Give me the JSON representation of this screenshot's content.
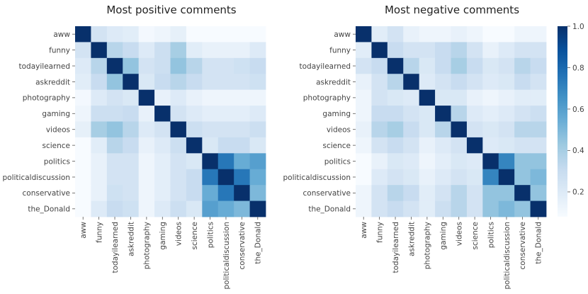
{
  "chart_data": [
    {
      "type": "heatmap",
      "title": "Most positive comments",
      "categories": [
        "aww",
        "funny",
        "todayilearned",
        "askreddit",
        "photography",
        "gaming",
        "videos",
        "science",
        "politics",
        "politicaldiscussion",
        "conservative",
        "the_Donald"
      ],
      "values": [
        [
          1.0,
          0.25,
          0.2,
          0.18,
          0.1,
          0.12,
          0.16,
          0.08,
          0.06,
          0.07,
          0.06,
          0.08
        ],
        [
          0.25,
          1.0,
          0.35,
          0.3,
          0.2,
          0.28,
          0.4,
          0.18,
          0.15,
          0.15,
          0.15,
          0.2
        ],
        [
          0.2,
          0.35,
          1.0,
          0.45,
          0.25,
          0.28,
          0.45,
          0.35,
          0.25,
          0.25,
          0.27,
          0.3
        ],
        [
          0.18,
          0.3,
          0.45,
          1.0,
          0.22,
          0.3,
          0.35,
          0.3,
          0.25,
          0.25,
          0.25,
          0.27
        ],
        [
          0.1,
          0.2,
          0.25,
          0.22,
          1.0,
          0.15,
          0.2,
          0.15,
          0.12,
          0.12,
          0.12,
          0.12
        ],
        [
          0.12,
          0.28,
          0.28,
          0.3,
          0.15,
          1.0,
          0.25,
          0.2,
          0.17,
          0.17,
          0.17,
          0.2
        ],
        [
          0.16,
          0.4,
          0.45,
          0.35,
          0.2,
          0.25,
          1.0,
          0.28,
          0.25,
          0.25,
          0.25,
          0.28
        ],
        [
          0.08,
          0.18,
          0.35,
          0.3,
          0.15,
          0.2,
          0.28,
          1.0,
          0.22,
          0.3,
          0.3,
          0.22
        ],
        [
          0.06,
          0.15,
          0.25,
          0.25,
          0.12,
          0.17,
          0.25,
          0.22,
          1.0,
          0.75,
          0.55,
          0.6
        ],
        [
          0.07,
          0.15,
          0.25,
          0.25,
          0.12,
          0.17,
          0.25,
          0.3,
          0.75,
          1.0,
          0.75,
          0.55
        ],
        [
          0.06,
          0.15,
          0.27,
          0.25,
          0.12,
          0.17,
          0.25,
          0.3,
          0.55,
          0.75,
          1.0,
          0.5
        ],
        [
          0.08,
          0.2,
          0.3,
          0.27,
          0.12,
          0.2,
          0.28,
          0.22,
          0.6,
          0.55,
          0.5,
          1.0
        ]
      ]
    },
    {
      "type": "heatmap",
      "title": "Most negative comments",
      "categories": [
        "aww",
        "funny",
        "todayilearned",
        "askreddit",
        "photography",
        "gaming",
        "videos",
        "science",
        "politics",
        "politicaldiscussion",
        "conservative",
        "the_Donald"
      ],
      "values": [
        [
          1.0,
          0.18,
          0.25,
          0.15,
          0.12,
          0.12,
          0.15,
          0.12,
          0.07,
          0.07,
          0.12,
          0.12
        ],
        [
          0.18,
          1.0,
          0.3,
          0.25,
          0.25,
          0.3,
          0.35,
          0.25,
          0.15,
          0.2,
          0.25,
          0.25
        ],
        [
          0.25,
          0.3,
          1.0,
          0.35,
          0.22,
          0.3,
          0.4,
          0.3,
          0.22,
          0.25,
          0.35,
          0.3
        ],
        [
          0.15,
          0.25,
          0.35,
          1.0,
          0.2,
          0.25,
          0.3,
          0.25,
          0.2,
          0.22,
          0.3,
          0.25
        ],
        [
          0.12,
          0.25,
          0.22,
          0.2,
          1.0,
          0.22,
          0.22,
          0.15,
          0.12,
          0.15,
          0.18,
          0.18
        ],
        [
          0.12,
          0.3,
          0.3,
          0.25,
          0.22,
          1.0,
          0.35,
          0.2,
          0.17,
          0.2,
          0.25,
          0.28
        ],
        [
          0.15,
          0.35,
          0.4,
          0.3,
          0.22,
          0.35,
          1.0,
          0.25,
          0.22,
          0.25,
          0.35,
          0.35
        ],
        [
          0.12,
          0.25,
          0.3,
          0.25,
          0.15,
          0.2,
          0.25,
          1.0,
          0.2,
          0.22,
          0.25,
          0.25
        ],
        [
          0.07,
          0.15,
          0.22,
          0.2,
          0.12,
          0.17,
          0.22,
          0.2,
          1.0,
          0.7,
          0.45,
          0.45
        ],
        [
          0.07,
          0.2,
          0.25,
          0.22,
          0.15,
          0.2,
          0.25,
          0.22,
          0.7,
          1.0,
          0.45,
          0.5
        ],
        [
          0.12,
          0.25,
          0.35,
          0.3,
          0.18,
          0.25,
          0.35,
          0.25,
          0.45,
          0.45,
          1.0,
          0.45
        ],
        [
          0.12,
          0.25,
          0.3,
          0.25,
          0.18,
          0.28,
          0.35,
          0.25,
          0.45,
          0.5,
          0.45,
          1.0
        ]
      ]
    }
  ],
  "colorbar": {
    "min": 0.08,
    "max": 1.0,
    "ticks": [
      0.2,
      0.4,
      0.6,
      0.8,
      1.0
    ],
    "tick_labels": [
      "0.2",
      "0.4",
      "0.6",
      "0.8",
      "1.0"
    ],
    "colormap": "Blues"
  }
}
